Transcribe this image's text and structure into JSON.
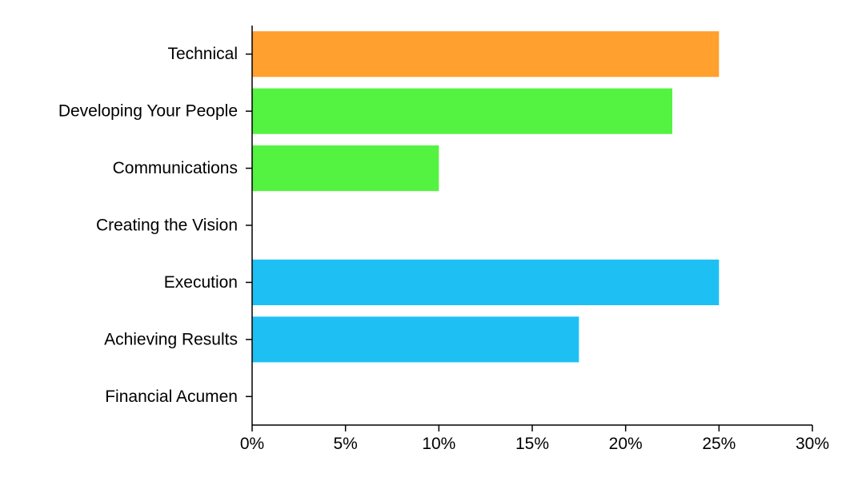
{
  "chart_data": {
    "type": "bar",
    "orientation": "horizontal",
    "categories": [
      "Technical",
      "Developing Your People",
      "Communications",
      "Creating the Vision",
      "Execution",
      "Achieving Results",
      "Financial Acumen"
    ],
    "values": [
      25,
      22.5,
      10,
      0,
      25,
      17.5,
      0
    ],
    "bar_colors": [
      "#ffa02f",
      "#55f341",
      "#55f341",
      "#55f341",
      "#1ec0f4",
      "#1ec0f4",
      "#1ec0f4"
    ],
    "x_ticks": [
      0,
      5,
      10,
      15,
      20,
      25,
      30
    ],
    "x_tick_labels": [
      "0%",
      "5%",
      "10%",
      "15%",
      "20%",
      "25%",
      "30%"
    ],
    "xlim": [
      0,
      30
    ],
    "title": "",
    "xlabel": "",
    "ylabel": "",
    "grid": false,
    "legend": "none"
  }
}
